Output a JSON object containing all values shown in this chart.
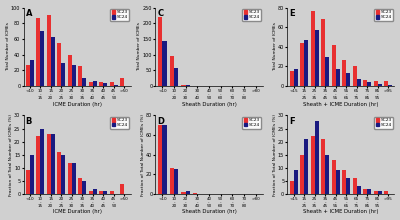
{
  "panel_A": {
    "label": "A",
    "xlabel": "ICME Duration (hr)",
    "ylabel": "Total Number of ICMEs",
    "bins": [
      "<10",
      "10-15",
      "15-20",
      "20-25",
      "25-30",
      "30-35",
      "35-40",
      "40-45",
      "45-50",
      ">50"
    ],
    "sc23": [
      27,
      87,
      90,
      55,
      40,
      25,
      5,
      5,
      5,
      10
    ],
    "sc24": [
      33,
      70,
      63,
      30,
      27,
      10,
      7,
      4,
      2,
      0
    ],
    "ylim": [
      0,
      100
    ],
    "yticks": [
      0,
      20,
      40,
      60,
      80,
      100
    ]
  },
  "panel_B": {
    "label": "B",
    "xlabel": "ICME Duration (hr)",
    "ylabel": "Fraction of Total Number of ICMEs (%)",
    "bins": [
      "<10",
      "10-15",
      "15-20",
      "20-25",
      "25-30",
      "30-35",
      "35-40",
      "40-45",
      "45-50",
      ">50"
    ],
    "sc23": [
      9,
      22,
      23,
      16,
      12,
      6,
      1,
      1,
      1,
      4
    ],
    "sc24": [
      15,
      25,
      23,
      15,
      12,
      5,
      2,
      1,
      0,
      0
    ],
    "ylim": [
      0,
      30
    ],
    "yticks": [
      0,
      5,
      10,
      15,
      20,
      25,
      30
    ]
  },
  "panel_C": {
    "label": "C",
    "xlabel": "Sheath Duration (hr)",
    "ylabel": "Total Number of ICMEs",
    "bins": [
      "<10",
      "10-20",
      "20-30",
      "30-40",
      "40-50",
      "50-60",
      "60-70",
      "70-80",
      ">80"
    ],
    "sc23": [
      220,
      95,
      5,
      2,
      1,
      1,
      0,
      0,
      0
    ],
    "sc24": [
      145,
      57,
      3,
      1,
      0,
      0,
      0,
      0,
      0
    ],
    "ylim": [
      0,
      250
    ],
    "yticks": [
      0,
      50,
      100,
      150,
      200,
      250
    ]
  },
  "panel_D": {
    "label": "D",
    "xlabel": "Sheath Duration (hr)",
    "ylabel": "Fraction of Total Number of ICMEs (%)",
    "bins": [
      "<10",
      "10-20",
      "20-30",
      "30-40",
      "40-50",
      "50-60",
      "60-70",
      "70-80",
      ">80"
    ],
    "sc23": [
      70,
      27,
      2,
      1,
      0,
      0,
      0,
      0,
      0
    ],
    "sc24": [
      70,
      26,
      3,
      0,
      0,
      0,
      0,
      0,
      0
    ],
    "ylim": [
      0,
      80
    ],
    "yticks": [
      0,
      20,
      40,
      60,
      80
    ]
  },
  "panel_E": {
    "label": "E",
    "xlabel": "Sheath + ICME Duration (hr)",
    "ylabel": "Total Number of ICMEs",
    "bins": [
      "<15",
      "15-25",
      "25-35",
      "35-45",
      "45-55",
      "55-65",
      "65-75",
      "75-85",
      "85-95",
      ">95"
    ],
    "sc23": [
      15,
      44,
      76,
      68,
      42,
      27,
      20,
      6,
      5,
      5
    ],
    "sc24": [
      17,
      47,
      57,
      30,
      17,
      13,
      7,
      4,
      2,
      1
    ],
    "ylim": [
      0,
      80
    ],
    "yticks": [
      0,
      20,
      40,
      60,
      80
    ]
  },
  "panel_F": {
    "label": "F",
    "xlabel": "Sheath + ICME Duration (hr)",
    "ylabel": "Fraction of Total Number of ICMEs (%)",
    "bins": [
      "<15",
      "15-25",
      "25-35",
      "35-45",
      "45-55",
      "55-65",
      "65-75",
      "75-85",
      "85-95",
      ">95"
    ],
    "sc23": [
      5,
      15,
      22,
      21,
      13,
      9,
      6,
      2,
      1,
      1
    ],
    "sc24": [
      9,
      21,
      28,
      15,
      9,
      6,
      3,
      2,
      1,
      0
    ],
    "ylim": [
      0,
      30
    ],
    "yticks": [
      0,
      5,
      10,
      15,
      20,
      25,
      30
    ]
  },
  "color_sc23": "#e83030",
  "color_sc24": "#1a1a80",
  "bg_color": "#d0d0d0"
}
